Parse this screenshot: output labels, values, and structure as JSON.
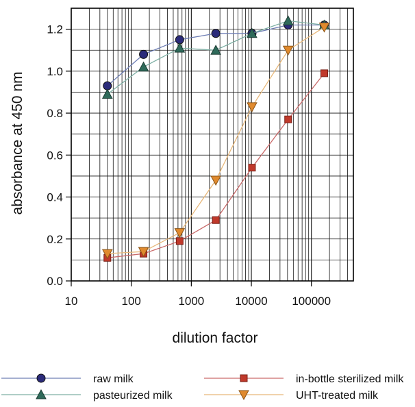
{
  "chart_data": {
    "type": "line",
    "xlabel": "dilution factor",
    "ylabel": "absorbance at 450 nm",
    "x_scale": "log",
    "xlim": [
      10,
      500000
    ],
    "ylim": [
      0,
      1.3
    ],
    "grid": true,
    "legend_position": "bottom",
    "x_ticks": [
      10,
      100,
      1000,
      10000,
      100000
    ],
    "x_tick_labels": [
      "10",
      "100",
      "1000",
      "10000",
      "100000"
    ],
    "y_ticks": [
      0,
      0.2,
      0.4,
      0.6,
      0.8,
      1.0,
      1.2
    ],
    "y_tick_labels": [
      "0.0",
      "0.2",
      "0.4",
      "0.6",
      "0.8",
      "1.0",
      "1.2"
    ],
    "x": [
      40,
      160,
      640,
      2560,
      10240,
      40960,
      163840
    ],
    "series": [
      {
        "name": "raw milk",
        "marker": "circle",
        "color": "#2b2b7a",
        "line_color": "#6f7fb5",
        "values": [
          0.93,
          1.08,
          1.15,
          1.18,
          1.18,
          1.22,
          1.22
        ]
      },
      {
        "name": "pasteurized milk",
        "marker": "triangle-up",
        "color": "#2f6a5a",
        "line_color": "#7fb0a5",
        "values": [
          0.89,
          1.02,
          1.11,
          1.1,
          1.18,
          1.24,
          1.22
        ]
      },
      {
        "name": "in-bottle sterilized milk",
        "marker": "square",
        "color": "#c0392b",
        "line_color": "#c96a6a",
        "values": [
          0.11,
          0.13,
          0.19,
          0.29,
          0.54,
          0.77,
          0.99
        ]
      },
      {
        "name": "UHT-treated milk",
        "marker": "triangle-down",
        "color": "#e08a2e",
        "line_color": "#e8b87a",
        "values": [
          0.13,
          0.14,
          0.23,
          0.48,
          0.83,
          1.1,
          1.21
        ]
      }
    ]
  }
}
